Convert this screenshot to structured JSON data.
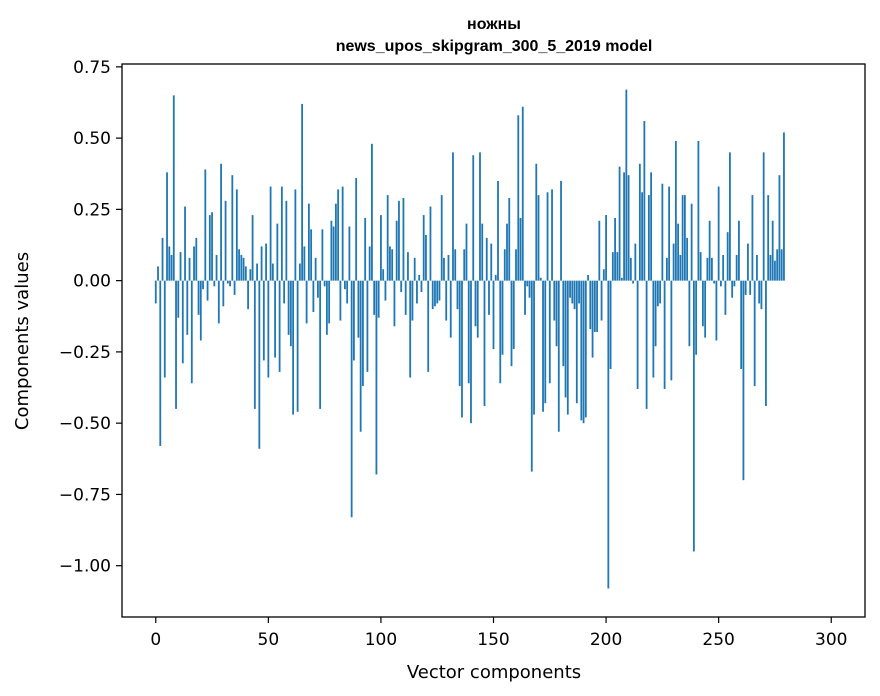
{
  "chart_data": {
    "type": "bar",
    "title_line1": "ножны",
    "title_line2": "news_upos_skipgram_300_5_2019 model",
    "xlabel": "Vector components",
    "ylabel": "Components values",
    "xlim": [
      -15,
      315
    ],
    "ylim": [
      -1.18,
      0.76
    ],
    "x_ticks": [
      0,
      50,
      100,
      150,
      200,
      250,
      300
    ],
    "x_tick_labels": [
      "0",
      "50",
      "100",
      "150",
      "200",
      "250",
      "300"
    ],
    "y_ticks": [
      0.75,
      0.5,
      0.25,
      0.0,
      -0.25,
      -0.5,
      -0.75,
      -1.0
    ],
    "y_tick_labels": [
      "0.75",
      "0.50",
      "0.25",
      "0.00",
      "−0.25",
      "−0.50",
      "−0.75",
      "−1.00"
    ],
    "bar_color": "#1f77b4",
    "grid": false,
    "series": [
      {
        "name": "ножны",
        "values": [
          -0.08,
          0.05,
          -0.58,
          0.15,
          -0.34,
          0.38,
          0.12,
          0.09,
          0.65,
          -0.45,
          -0.13,
          0.1,
          -0.29,
          0.26,
          -0.19,
          0.08,
          -0.36,
          0.12,
          0.15,
          -0.12,
          -0.21,
          -0.03,
          0.39,
          -0.07,
          0.23,
          0.24,
          -0.02,
          0.09,
          -0.15,
          0.41,
          -0.09,
          0.28,
          -0.01,
          -0.02,
          0.37,
          -0.05,
          0.32,
          0.11,
          0.09,
          0.08,
          0.05,
          -0.1,
          0.04,
          0.23,
          -0.45,
          0.06,
          -0.59,
          0.12,
          -0.28,
          0.13,
          -0.34,
          0.33,
          0.06,
          -0.27,
          0.2,
          -0.32,
          0.33,
          -0.08,
          0.28,
          -0.19,
          -0.23,
          -0.47,
          0.32,
          -0.46,
          0.06,
          0.62,
          0.12,
          -0.15,
          0.27,
          0.18,
          -0.11,
          0.08,
          -0.06,
          -0.45,
          0.18,
          -0.02,
          -0.19,
          -0.15,
          0.21,
          0.19,
          0.27,
          0.32,
          -0.14,
          0.33,
          -0.03,
          -0.08,
          0.19,
          -0.83,
          -0.28,
          0.36,
          -0.2,
          -0.53,
          -0.37,
          0.22,
          -0.32,
          0.12,
          0.48,
          -0.12,
          -0.68,
          -0.13,
          0.23,
          0.04,
          -0.07,
          0.3,
          0.12,
          0.11,
          -0.16,
          0.21,
          0.28,
          -0.04,
          0.29,
          -0.12,
          0.1,
          -0.34,
          -0.14,
          0.08,
          -0.08,
          0.02,
          -0.04,
          0.23,
          0.16,
          -0.32,
          0.26,
          -0.1,
          -0.09,
          -0.08,
          -0.07,
          0.3,
          0.08,
          -0.14,
          0.09,
          -0.2,
          0.45,
          0.11,
          -0.1,
          -0.37,
          -0.48,
          0.11,
          0.2,
          -0.36,
          -0.5,
          0.44,
          -0.16,
          -0.2,
          0.45,
          0.2,
          -0.44,
          0.15,
          -0.12,
          0.13,
          -0.24,
          0.02,
          0.35,
          -0.36,
          -0.26,
          0.11,
          0.2,
          0.29,
          -0.3,
          -0.24,
          0.11,
          0.58,
          0.22,
          0.61,
          -0.12,
          -0.02,
          -0.06,
          -0.67,
          -0.47,
          0.41,
          0.3,
          0.01,
          -0.46,
          -0.43,
          0.31,
          -0.36,
          0.32,
          -0.14,
          -0.23,
          -0.53,
          0.35,
          -0.3,
          -0.41,
          -0.47,
          -0.06,
          -0.08,
          -0.1,
          -0.43,
          -0.08,
          -0.49,
          -0.5,
          -0.48,
          0.02,
          -0.17,
          -0.27,
          -0.18,
          -0.18,
          0.21,
          -0.14,
          0.04,
          0.23,
          -1.08,
          -0.31,
          0.1,
          0.22,
          0.1,
          0.4,
          0.01,
          0.38,
          0.67,
          0.37,
          0.08,
          -0.01,
          0.13,
          -0.38,
          0.41,
          0.31,
          0.56,
          -0.45,
          0.3,
          0.38,
          -0.34,
          -0.23,
          -0.09,
          -0.08,
          0.34,
          -0.38,
          0.08,
          0.33,
          -0.35,
          0.13,
          0.49,
          0.2,
          0.09,
          0.3,
          0.3,
          0.15,
          -0.23,
          0.27,
          -0.95,
          -0.26,
          0.49,
          0.1,
          -0.16,
          -0.2,
          0.08,
          0.21,
          0.08,
          -0.01,
          -0.21,
          0.33,
          -0.02,
          0.09,
          -0.12,
          0.17,
          0.45,
          -0.06,
          -0.02,
          0.09,
          0.21,
          -0.31,
          -0.7,
          -0.05,
          0.13,
          -0.05,
          0.3,
          -0.37,
          0.09,
          -0.08,
          -0.1,
          0.45,
          -0.44,
          0.3,
          0.09,
          0.21,
          0.07,
          0.11,
          0.37,
          0.11,
          0.52
        ]
      }
    ]
  }
}
